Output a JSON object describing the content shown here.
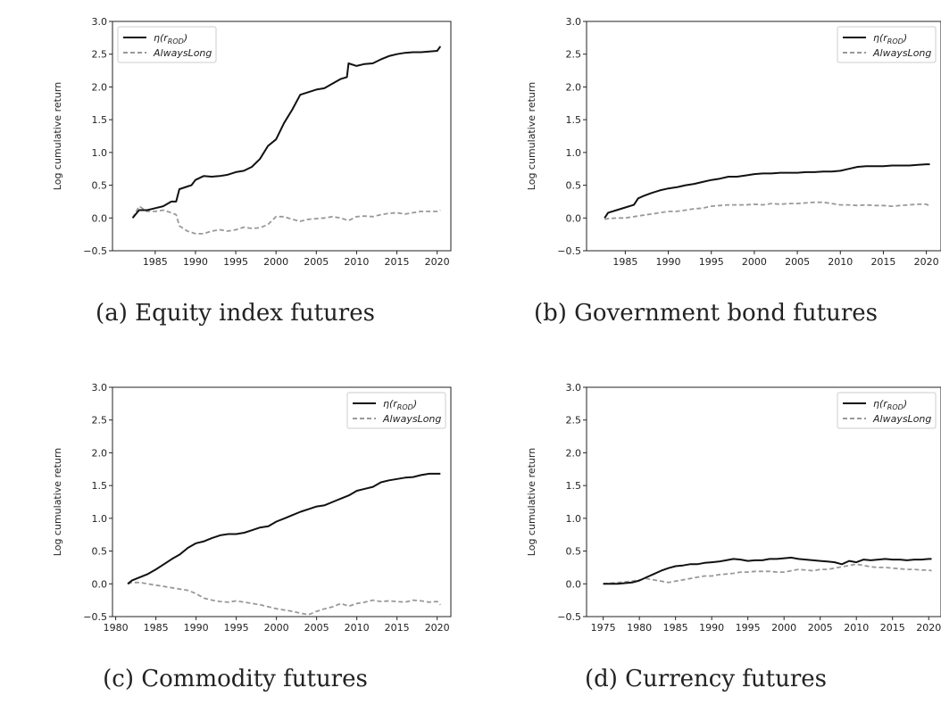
{
  "chart_data": [
    {
      "type": "line",
      "caption": "(a) Equity index futures",
      "ylabel": "Log cumulative return",
      "xlim": [
        1979.7,
        2021.7
      ],
      "ylim": [
        -0.5,
        3.0
      ],
      "xticks": [
        "1985",
        "1990",
        "1995",
        "2000",
        "2005",
        "2010",
        "2015",
        "2020"
      ],
      "yticks": [
        "−0.5",
        "0.0",
        "0.5",
        "1.0",
        "1.5",
        "2.0",
        "2.5",
        "3.0"
      ],
      "legend_position": "top-left",
      "series": [
        {
          "name": "η(r_ROD)",
          "label_main": "η(r",
          "label_sub": "ROD",
          "label_end": ")",
          "color": "#111111",
          "dash": "solid",
          "x": [
            1982.2,
            1983,
            1984,
            1985,
            1986,
            1987,
            1987.6,
            1988,
            1989,
            1989.5,
            1990,
            1991,
            1992,
            1993,
            1994,
            1995,
            1996,
            1997,
            1998,
            1999,
            2000,
            2001,
            2002,
            2003,
            2004,
            2005,
            2006,
            2007,
            2008,
            2008.8,
            2009,
            2010,
            2011,
            2012,
            2013,
            2014,
            2015,
            2016,
            2017,
            2018,
            2019,
            2020,
            2020.4
          ],
          "y": [
            0.0,
            0.12,
            0.12,
            0.15,
            0.18,
            0.25,
            0.25,
            0.44,
            0.48,
            0.5,
            0.58,
            0.64,
            0.63,
            0.64,
            0.66,
            0.7,
            0.72,
            0.78,
            0.9,
            1.1,
            1.2,
            1.45,
            1.65,
            1.88,
            1.92,
            1.96,
            1.98,
            2.05,
            2.12,
            2.15,
            2.36,
            2.32,
            2.35,
            2.36,
            2.42,
            2.47,
            2.5,
            2.52,
            2.53,
            2.53,
            2.54,
            2.55,
            2.62
          ]
        },
        {
          "name": "AlwaysLong",
          "color": "#999999",
          "dash": "dashed",
          "x": [
            1982.2,
            1983,
            1984,
            1985,
            1986,
            1987,
            1987.6,
            1988,
            1989,
            1990,
            1991,
            1992,
            1993,
            1994,
            1995,
            1996,
            1997,
            1998,
            1999,
            2000,
            2001,
            2002,
            2003,
            2004,
            2005,
            2006,
            2007,
            2008,
            2009,
            2010,
            2011,
            2012,
            2013,
            2014,
            2015,
            2016,
            2017,
            2018,
            2019,
            2020,
            2020.4
          ],
          "y": [
            0.0,
            0.18,
            0.1,
            0.1,
            0.12,
            0.08,
            0.05,
            -0.12,
            -0.2,
            -0.24,
            -0.24,
            -0.2,
            -0.18,
            -0.2,
            -0.18,
            -0.14,
            -0.16,
            -0.15,
            -0.1,
            0.02,
            0.02,
            -0.02,
            -0.05,
            -0.02,
            -0.01,
            0.0,
            0.02,
            0.0,
            -0.04,
            0.02,
            0.03,
            0.02,
            0.05,
            0.07,
            0.08,
            0.06,
            0.08,
            0.1,
            0.1,
            0.1,
            0.12
          ]
        }
      ]
    },
    {
      "type": "line",
      "caption": "(b) Government bond futures",
      "ylabel": "Log cumulative return",
      "xlim": [
        1980.5,
        2021.7
      ],
      "ylim": [
        -0.5,
        3.0
      ],
      "xticks": [
        "1985",
        "1990",
        "1995",
        "2000",
        "2005",
        "2010",
        "2015",
        "2020"
      ],
      "yticks": [
        "−0.5",
        "0.0",
        "0.5",
        "1.0",
        "1.5",
        "2.0",
        "2.5",
        "3.0"
      ],
      "legend_position": "top-right",
      "series": [
        {
          "name": "η(r_ROD)",
          "label_main": "η(r",
          "label_sub": "ROD",
          "label_end": ")",
          "color": "#111111",
          "dash": "solid",
          "x": [
            1982.6,
            1983,
            1984,
            1985,
            1986,
            1986.5,
            1987,
            1988,
            1989,
            1990,
            1991,
            1992,
            1993,
            1994,
            1995,
            1996,
            1997,
            1998,
            1999,
            2000,
            2001,
            2002,
            2003,
            2004,
            2005,
            2006,
            2007,
            2008,
            2009,
            2010,
            2011,
            2012,
            2013,
            2014,
            2015,
            2016,
            2017,
            2018,
            2019,
            2020,
            2020.4
          ],
          "y": [
            0.0,
            0.08,
            0.12,
            0.16,
            0.2,
            0.3,
            0.33,
            0.38,
            0.42,
            0.45,
            0.47,
            0.5,
            0.52,
            0.55,
            0.58,
            0.6,
            0.63,
            0.63,
            0.65,
            0.67,
            0.68,
            0.68,
            0.69,
            0.69,
            0.69,
            0.7,
            0.7,
            0.71,
            0.71,
            0.72,
            0.75,
            0.78,
            0.79,
            0.79,
            0.79,
            0.8,
            0.8,
            0.8,
            0.81,
            0.82,
            0.82
          ]
        },
        {
          "name": "AlwaysLong",
          "color": "#999999",
          "dash": "dashed",
          "x": [
            1982.6,
            1983,
            1984,
            1985,
            1986,
            1987,
            1988,
            1989,
            1990,
            1991,
            1992,
            1993,
            1994,
            1995,
            1996,
            1997,
            1998,
            1999,
            2000,
            2001,
            2002,
            2003,
            2004,
            2005,
            2006,
            2007,
            2008,
            2009,
            2010,
            2011,
            2012,
            2013,
            2014,
            2015,
            2016,
            2017,
            2018,
            2019,
            2020,
            2020.4
          ],
          "y": [
            -0.02,
            -0.01,
            0.0,
            0.0,
            0.02,
            0.04,
            0.06,
            0.08,
            0.1,
            0.1,
            0.12,
            0.14,
            0.15,
            0.18,
            0.19,
            0.2,
            0.2,
            0.2,
            0.21,
            0.2,
            0.22,
            0.21,
            0.22,
            0.22,
            0.23,
            0.24,
            0.24,
            0.22,
            0.2,
            0.2,
            0.19,
            0.2,
            0.19,
            0.19,
            0.18,
            0.19,
            0.2,
            0.21,
            0.21,
            0.18
          ]
        }
      ]
    },
    {
      "type": "line",
      "caption": "(c) Commodity futures",
      "ylabel": "Log cumulative return",
      "xlim": [
        1979.6,
        2021.7
      ],
      "ylim": [
        -0.5,
        3.0
      ],
      "xticks": [
        "1980",
        "1985",
        "1990",
        "1995",
        "2000",
        "2005",
        "2010",
        "2015",
        "2020"
      ],
      "yticks": [
        "−0.5",
        "0.0",
        "0.5",
        "1.0",
        "1.5",
        "2.0",
        "2.5",
        "3.0"
      ],
      "legend_position": "top-right",
      "series": [
        {
          "name": "η(r_ROD)",
          "label_main": "η(r",
          "label_sub": "ROD",
          "label_end": ")",
          "color": "#111111",
          "dash": "solid",
          "x": [
            1981.5,
            1982,
            1983,
            1984,
            1985,
            1986,
            1987,
            1988,
            1989,
            1990,
            1991,
            1992,
            1993,
            1994,
            1995,
            1996,
            1997,
            1998,
            1999,
            2000,
            2001,
            2002,
            2003,
            2004,
            2005,
            2006,
            2007,
            2008,
            2009,
            2010,
            2011,
            2012,
            2013,
            2014,
            2015,
            2016,
            2017,
            2018,
            2019,
            2020,
            2020.4
          ],
          "y": [
            0.0,
            0.05,
            0.1,
            0.15,
            0.22,
            0.3,
            0.38,
            0.45,
            0.55,
            0.62,
            0.65,
            0.7,
            0.74,
            0.76,
            0.76,
            0.78,
            0.82,
            0.86,
            0.88,
            0.95,
            1.0,
            1.05,
            1.1,
            1.14,
            1.18,
            1.2,
            1.25,
            1.3,
            1.35,
            1.42,
            1.45,
            1.48,
            1.55,
            1.58,
            1.6,
            1.62,
            1.63,
            1.66,
            1.68,
            1.68,
            1.68
          ]
        },
        {
          "name": "AlwaysLong",
          "color": "#999999",
          "dash": "dashed",
          "x": [
            1981.5,
            1982,
            1983,
            1984,
            1985,
            1986,
            1987,
            1988,
            1989,
            1990,
            1991,
            1992,
            1993,
            1994,
            1995,
            1996,
            1997,
            1998,
            1999,
            2000,
            2001,
            2002,
            2003,
            2004,
            2005,
            2006,
            2007,
            2008,
            2009,
            2010,
            2011,
            2012,
            2013,
            2014,
            2015,
            2016,
            2017,
            2018,
            2019,
            2020,
            2020.4
          ],
          "y": [
            0.0,
            0.02,
            0.02,
            0.0,
            -0.02,
            -0.04,
            -0.06,
            -0.08,
            -0.1,
            -0.15,
            -0.22,
            -0.25,
            -0.27,
            -0.28,
            -0.26,
            -0.28,
            -0.3,
            -0.32,
            -0.35,
            -0.38,
            -0.4,
            -0.42,
            -0.45,
            -0.47,
            -0.42,
            -0.38,
            -0.35,
            -0.3,
            -0.34,
            -0.3,
            -0.28,
            -0.25,
            -0.27,
            -0.26,
            -0.27,
            -0.28,
            -0.25,
            -0.26,
            -0.28,
            -0.27,
            -0.32
          ]
        }
      ]
    },
    {
      "type": "line",
      "caption": "(d) Currency futures",
      "ylabel": "Log cumulative return",
      "xlim": [
        1972.7,
        2021.7
      ],
      "ylim": [
        -0.5,
        3.0
      ],
      "xticks": [
        "1975",
        "1980",
        "1985",
        "1990",
        "1995",
        "2000",
        "2005",
        "2010",
        "2015",
        "2020"
      ],
      "yticks": [
        "−0.5",
        "0.0",
        "0.5",
        "1.0",
        "1.5",
        "2.0",
        "2.5",
        "3.0"
      ],
      "legend_position": "top-right",
      "series": [
        {
          "name": "η(r_ROD)",
          "label_main": "η(r",
          "label_sub": "ROD",
          "label_end": ")",
          "color": "#111111",
          "dash": "solid",
          "x": [
            1975,
            1977,
            1979,
            1980,
            1981,
            1982,
            1983,
            1984,
            1985,
            1986,
            1987,
            1988,
            1989,
            1990,
            1991,
            1992,
            1993,
            1994,
            1995,
            1996,
            1997,
            1998,
            1999,
            2000,
            2001,
            2002,
            2003,
            2004,
            2005,
            2006,
            2007,
            2008,
            2009,
            2010,
            2011,
            2012,
            2013,
            2014,
            2015,
            2016,
            2017,
            2018,
            2019,
            2020,
            2020.4
          ],
          "y": [
            0.0,
            0.0,
            0.02,
            0.05,
            0.1,
            0.15,
            0.2,
            0.24,
            0.27,
            0.28,
            0.3,
            0.3,
            0.32,
            0.33,
            0.34,
            0.36,
            0.38,
            0.37,
            0.35,
            0.36,
            0.36,
            0.38,
            0.38,
            0.39,
            0.4,
            0.38,
            0.37,
            0.36,
            0.35,
            0.34,
            0.33,
            0.3,
            0.35,
            0.33,
            0.37,
            0.36,
            0.37,
            0.38,
            0.37,
            0.37,
            0.36,
            0.37,
            0.37,
            0.38,
            0.38
          ]
        },
        {
          "name": "AlwaysLong",
          "color": "#999999",
          "dash": "dashed",
          "x": [
            1975,
            1977,
            1979,
            1980,
            1981,
            1982,
            1983,
            1984,
            1985,
            1986,
            1987,
            1988,
            1989,
            1990,
            1991,
            1992,
            1993,
            1994,
            1995,
            1996,
            1997,
            1998,
            1999,
            2000,
            2001,
            2002,
            2003,
            2004,
            2005,
            2006,
            2007,
            2008,
            2009,
            2010,
            2011,
            2012,
            2013,
            2014,
            2015,
            2016,
            2017,
            2018,
            2019,
            2020,
            2020.4
          ],
          "y": [
            0.0,
            0.02,
            0.04,
            0.06,
            0.08,
            0.06,
            0.04,
            0.02,
            0.04,
            0.06,
            0.08,
            0.1,
            0.12,
            0.12,
            0.14,
            0.15,
            0.16,
            0.18,
            0.18,
            0.19,
            0.19,
            0.19,
            0.18,
            0.18,
            0.2,
            0.22,
            0.21,
            0.2,
            0.22,
            0.22,
            0.24,
            0.26,
            0.28,
            0.3,
            0.28,
            0.26,
            0.25,
            0.25,
            0.24,
            0.23,
            0.22,
            0.22,
            0.21,
            0.21,
            0.2
          ]
        }
      ]
    }
  ]
}
